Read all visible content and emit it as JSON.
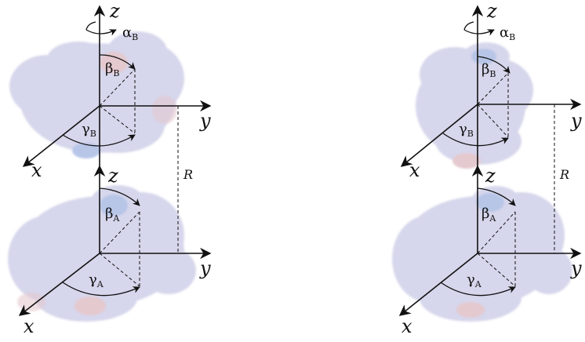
{
  "labels": {
    "axis_x": "x",
    "axis_y": "y",
    "axis_z": "z",
    "separation": "R",
    "alpha_symbol": "α",
    "beta_symbol": "β",
    "gamma_symbol": "γ",
    "sub_a": "A",
    "sub_b": "B"
  },
  "colors": {
    "protein_fill": "#c9c9e6",
    "protein_blue_patch": "#9fb2e0",
    "protein_red_patch": "#dcb7bf",
    "axis_color": "#111111"
  }
}
